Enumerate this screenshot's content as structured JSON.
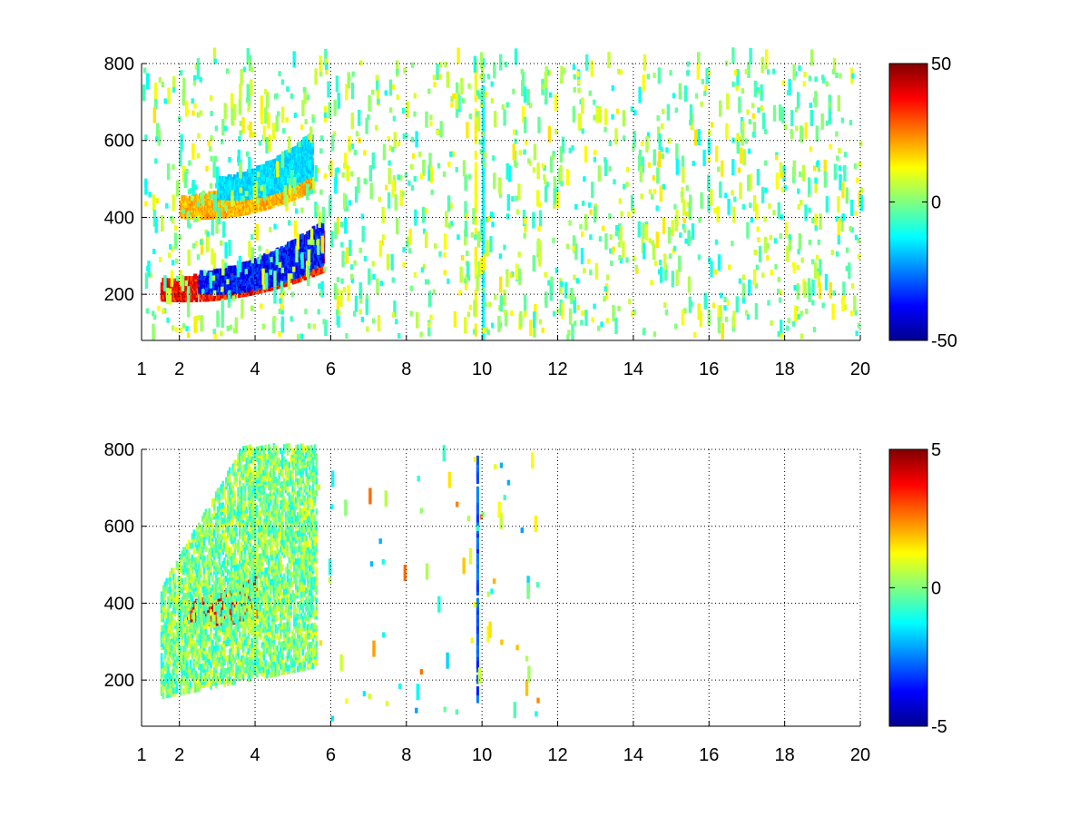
{
  "chart_data": [
    {
      "type": "heatmap",
      "x_ticks": [
        1,
        2,
        4,
        6,
        8,
        10,
        12,
        14,
        16,
        18,
        20
      ],
      "y_ticks": [
        200,
        400,
        600,
        800
      ],
      "xlim": [
        1,
        20
      ],
      "ylim": [
        80,
        800
      ],
      "grid": true,
      "colormap": "jet",
      "colorbar": {
        "ticks": [
          -50,
          0,
          50
        ],
        "range": [
          -50,
          50
        ]
      },
      "features": [
        {
          "kind": "curved-band",
          "x_range": [
            1.5,
            5.8
          ],
          "y_start": 205,
          "y_end": 310,
          "sign": "positive",
          "magnitude": 45
        },
        {
          "kind": "curved-band",
          "x_range": [
            2.5,
            5.8
          ],
          "y_start": 225,
          "y_end": 330,
          "sign": "negative",
          "magnitude": -45
        },
        {
          "kind": "curved-band",
          "x_range": [
            2.0,
            5.5
          ],
          "y_start": 420,
          "y_end": 520,
          "sign": "positive",
          "magnitude": 25
        },
        {
          "kind": "curved-band",
          "x_range": [
            3.0,
            5.5
          ],
          "y_start": 470,
          "y_end": 560,
          "sign": "negative",
          "magnitude": -20
        },
        {
          "kind": "vertical-stripe",
          "x": 10.0,
          "y_range": [
            80,
            800
          ],
          "sign": "negative",
          "magnitude": -15
        },
        {
          "kind": "vertical-stripe",
          "x": 9.8,
          "y_range": [
            80,
            800
          ],
          "sign": "positive",
          "magnitude": 15
        }
      ]
    },
    {
      "type": "heatmap",
      "x_ticks": [
        1,
        2,
        4,
        6,
        8,
        10,
        12,
        14,
        16,
        18,
        20
      ],
      "y_ticks": [
        200,
        400,
        600,
        800
      ],
      "xlim": [
        1,
        20
      ],
      "ylim": [
        80,
        800
      ],
      "grid": true,
      "colormap": "jet",
      "colorbar": {
        "ticks": [
          -5,
          0,
          5
        ],
        "range": [
          -5,
          5
        ]
      },
      "features": [
        {
          "kind": "curved-band",
          "x_range": [
            2.2,
            4.0
          ],
          "y_start": 370,
          "y_end": 410,
          "sign": "positive",
          "magnitude": 4.8
        },
        {
          "kind": "region",
          "x_range": [
            1.5,
            5.6
          ],
          "y_range": [
            150,
            800
          ],
          "sign": "near-zero",
          "magnitude": 0.5
        },
        {
          "kind": "vertical-stripe",
          "x": 9.85,
          "y_range": [
            140,
            780
          ],
          "sign": "negative",
          "magnitude": -3.5
        }
      ]
    }
  ]
}
